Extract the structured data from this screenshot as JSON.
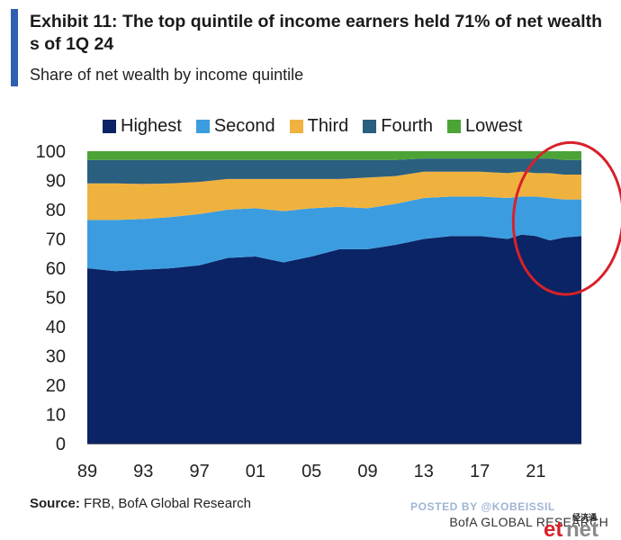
{
  "title": "Exhibit 11: The top quintile of income earners held 71% of net wealth s of 1Q 24",
  "subtitle": "Share of net wealth by income quintile",
  "source_label": "Source:",
  "source_text": " FRB, BofA Global Research",
  "footer": "BofA GLOBAL RESEARCH",
  "watermark": "POSTED BY @KOBEISSIL",
  "logo_text": "经济通",
  "chart_data": {
    "type": "area",
    "stacked": true,
    "title": "",
    "xlabel": "",
    "ylabel": "",
    "ylim": [
      0,
      100
    ],
    "xlim": [
      1989,
      2024.25
    ],
    "yticks": [
      "0",
      "10",
      "20",
      "30",
      "40",
      "50",
      "60",
      "70",
      "80",
      "90",
      "100"
    ],
    "xticks": [
      {
        "value": 1989,
        "label": "89"
      },
      {
        "value": 1993,
        "label": "93"
      },
      {
        "value": 1997,
        "label": "97"
      },
      {
        "value": 2001,
        "label": "01"
      },
      {
        "value": 2005,
        "label": "05"
      },
      {
        "value": 2009,
        "label": "09"
      },
      {
        "value": 2013,
        "label": "13"
      },
      {
        "value": 2017,
        "label": "17"
      },
      {
        "value": 2021,
        "label": "21"
      }
    ],
    "legend_position": "top",
    "x": [
      1989,
      1991,
      1993,
      1995,
      1997,
      1999,
      2001,
      2003,
      2005,
      2007,
      2009,
      2011,
      2013,
      2015,
      2017,
      2019,
      2020,
      2021,
      2022,
      2023,
      2024.25
    ],
    "series": [
      {
        "name": "Highest",
        "color": "#0b2465",
        "values": [
          60,
          59,
          59.5,
          60,
          61,
          63.5,
          64,
          62,
          64,
          66.5,
          66.5,
          68,
          70,
          71,
          71,
          70,
          71.5,
          71,
          69.5,
          70.5,
          71
        ]
      },
      {
        "name": "Second",
        "color": "#3b9de0",
        "values": [
          16.5,
          17.5,
          17.3,
          17.5,
          17.5,
          16.5,
          16.5,
          17.5,
          16.5,
          14.5,
          14,
          14,
          14,
          13.5,
          13.5,
          14,
          13,
          13.5,
          14.5,
          13,
          12.5
        ]
      },
      {
        "name": "Third",
        "color": "#f0b23e",
        "values": [
          12.5,
          12.5,
          12,
          11.5,
          11,
          10.5,
          10,
          11,
          10,
          9.5,
          10.5,
          9.5,
          9,
          8.5,
          8.5,
          8.5,
          8.5,
          8,
          8.5,
          8.5,
          8.5
        ]
      },
      {
        "name": "Fourth",
        "color": "#2b5f7f",
        "values": [
          8,
          8,
          8.2,
          8,
          7.5,
          6.5,
          6.5,
          6.5,
          6.5,
          6.5,
          6,
          5.5,
          4.5,
          4.5,
          4.5,
          5,
          4.5,
          5,
          5,
          5,
          5
        ]
      },
      {
        "name": "Lowest",
        "color": "#4ca437",
        "values": [
          3,
          3,
          3,
          3,
          3,
          3,
          3,
          3,
          3,
          3,
          3,
          3,
          2.5,
          2.5,
          2.5,
          2.5,
          2.5,
          2.5,
          2.5,
          3,
          3
        ]
      }
    ],
    "annotation": {
      "type": "ellipse",
      "color": "#d8212a",
      "x_center": 2023.3,
      "y_center": 77,
      "x_radius": 3.9,
      "y_radius": 26
    }
  }
}
